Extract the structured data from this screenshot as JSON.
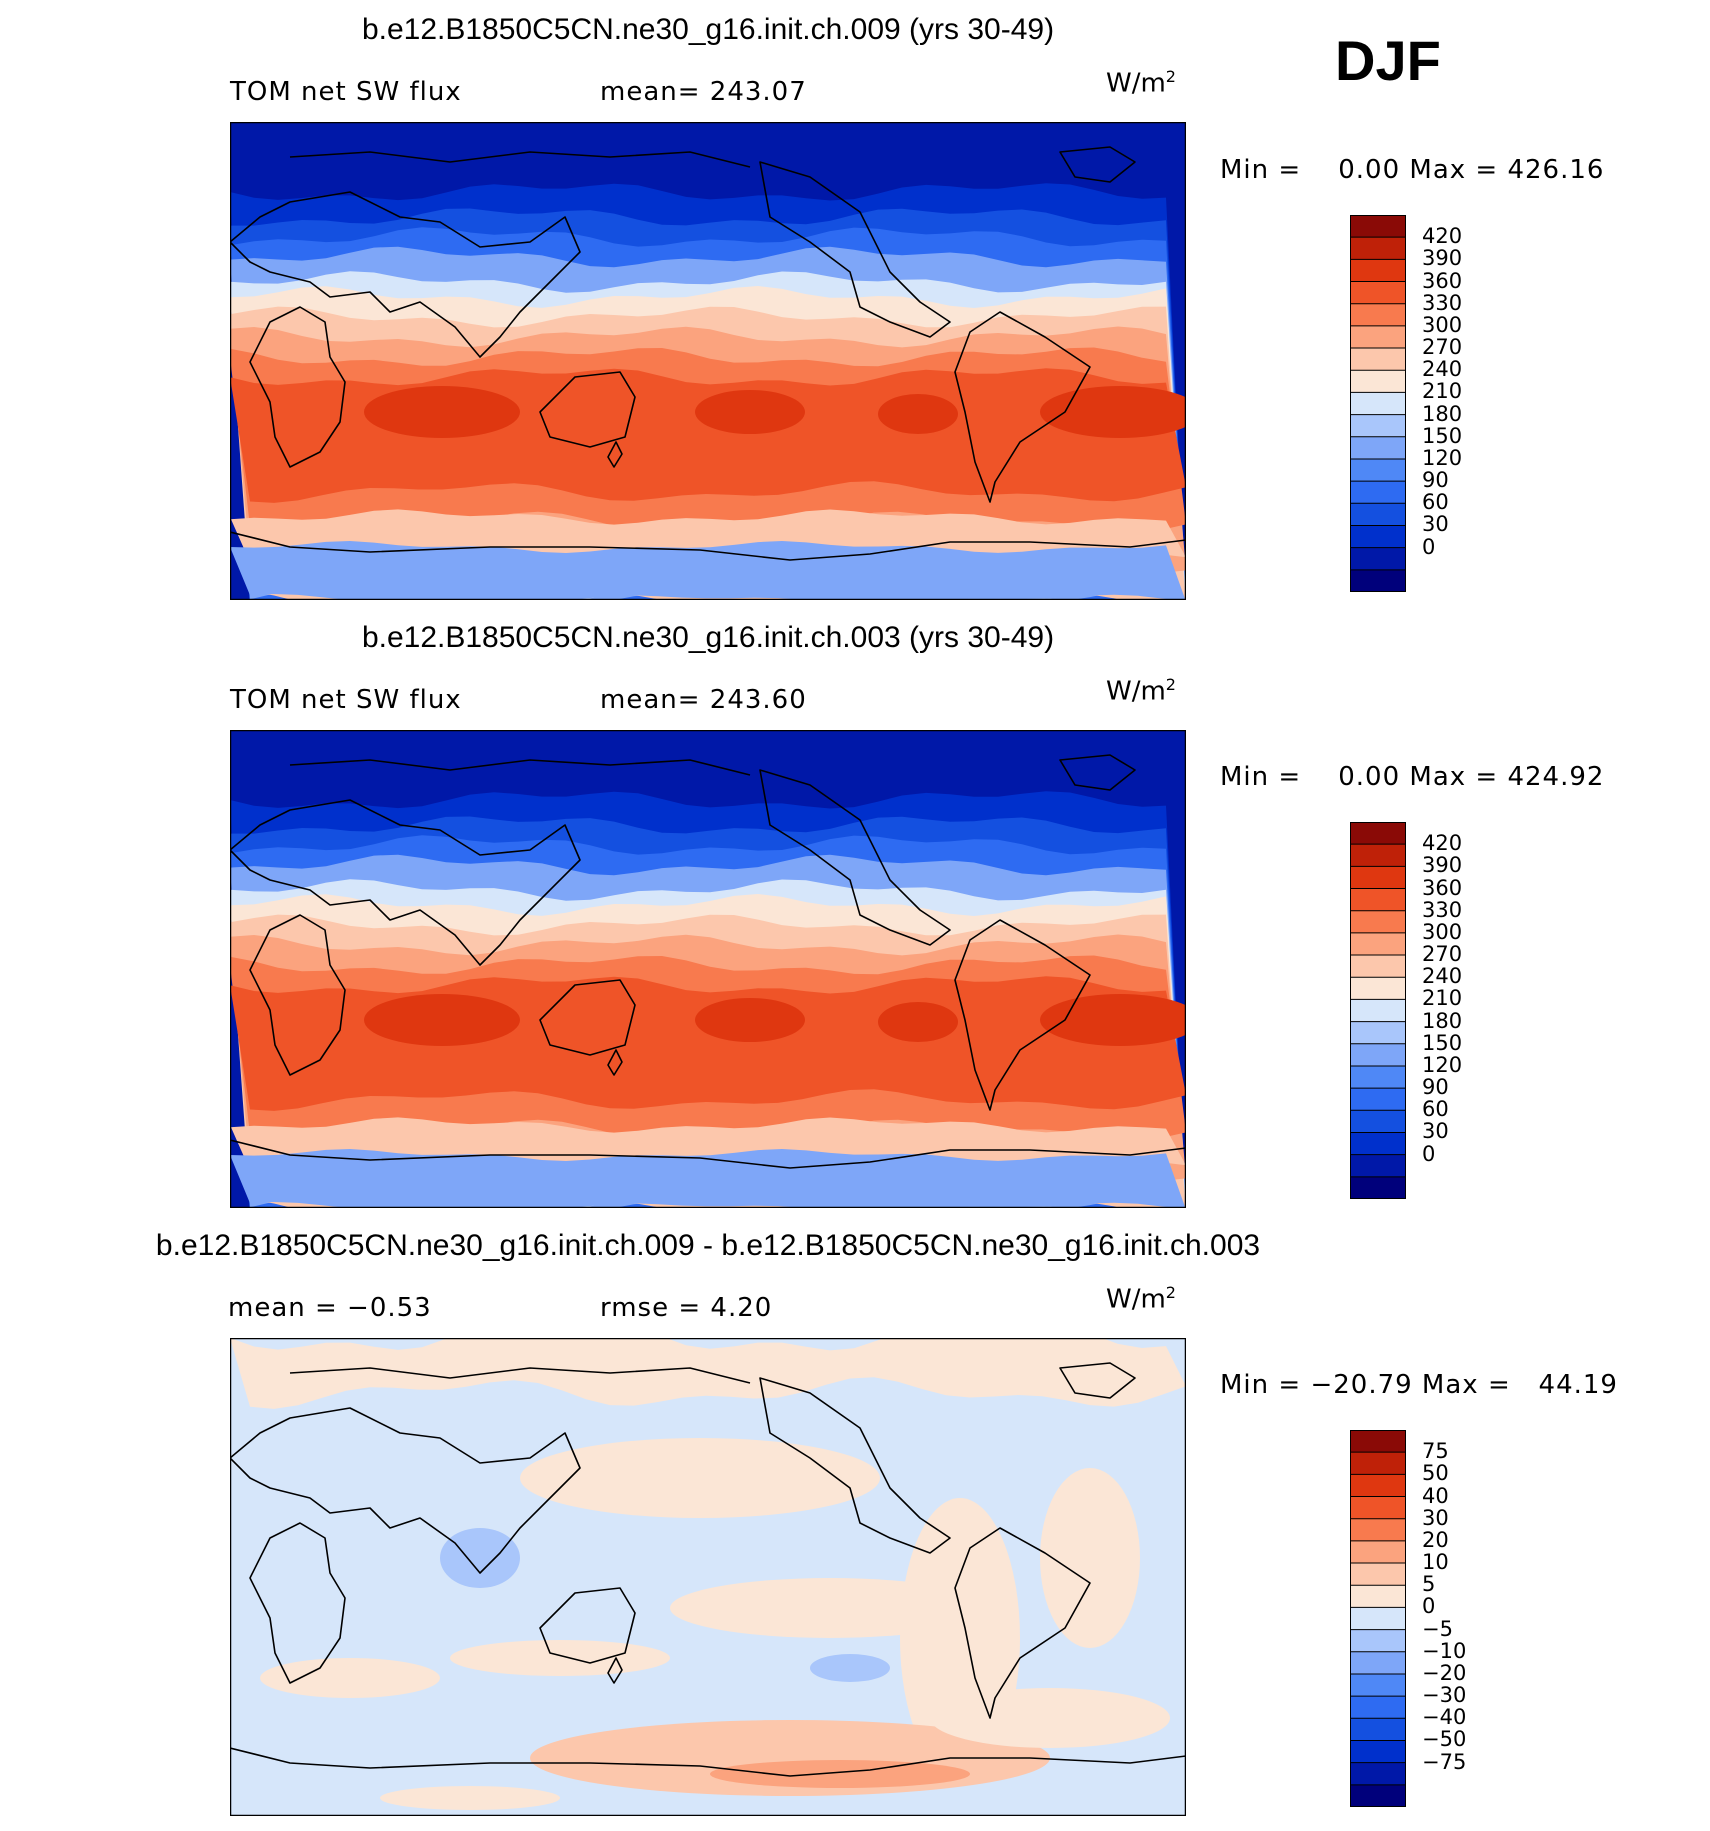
{
  "season": "DJF",
  "colors": {
    "abs_scale": [
      "#00007b",
      "#0018a8",
      "#0030cc",
      "#1450e0",
      "#2e6bf2",
      "#4f88f6",
      "#7ea6f8",
      "#a9c6fb",
      "#d6e6fa",
      "#fbe6d6",
      "#fcc7ac",
      "#fba37e",
      "#f87a4e",
      "#ef5428",
      "#df3710",
      "#bf2108",
      "#8a0a06"
    ],
    "diff_scale": [
      "#00007b",
      "#0018a8",
      "#0030cc",
      "#1450e0",
      "#2e6bf2",
      "#4f88f6",
      "#7ea6f8",
      "#a9c6fb",
      "#d6e6fa",
      "#fbe6d6",
      "#fcc7ac",
      "#fba37e",
      "#f87a4e",
      "#ef5428",
      "#df3710",
      "#bf2108",
      "#8a0a06"
    ],
    "land_outline": "#000000"
  },
  "panels": [
    {
      "title": "b.e12.B1850C5CN.ne30_g16.init.ch.009 (yrs 30-49)",
      "left_label": "TOM net SW flux",
      "center_label": "mean= 243.07",
      "units": "W/m",
      "units_sup": "2",
      "minmax": "Min =    0.00 Max = 426.16",
      "colorbar_ticks": [
        "420",
        "390",
        "360",
        "330",
        "300",
        "270",
        "240",
        "210",
        "180",
        "150",
        "120",
        "90",
        "60",
        "30",
        "0"
      ]
    },
    {
      "title": "b.e12.B1850C5CN.ne30_g16.init.ch.003 (yrs 30-49)",
      "left_label": "TOM net SW flux",
      "center_label": "mean= 243.60",
      "units": "W/m",
      "units_sup": "2",
      "minmax": "Min =    0.00 Max = 424.92",
      "colorbar_ticks": [
        "420",
        "390",
        "360",
        "330",
        "300",
        "270",
        "240",
        "210",
        "180",
        "150",
        "120",
        "90",
        "60",
        "30",
        "0"
      ]
    },
    {
      "title": "b.e12.B1850C5CN.ne30_g16.init.ch.009 - b.e12.B1850C5CN.ne30_g16.init.ch.003",
      "left_label": "mean =   −0.53",
      "center_label": "rmse =    4.20",
      "units": "W/m",
      "units_sup": "2",
      "minmax": "Min = −20.79 Max =   44.19",
      "colorbar_ticks": [
        "75",
        "50",
        "40",
        "30",
        "20",
        "10",
        "5",
        "0",
        "−5",
        "−10",
        "−20",
        "−30",
        "−40",
        "−50",
        "−75"
      ]
    }
  ]
}
